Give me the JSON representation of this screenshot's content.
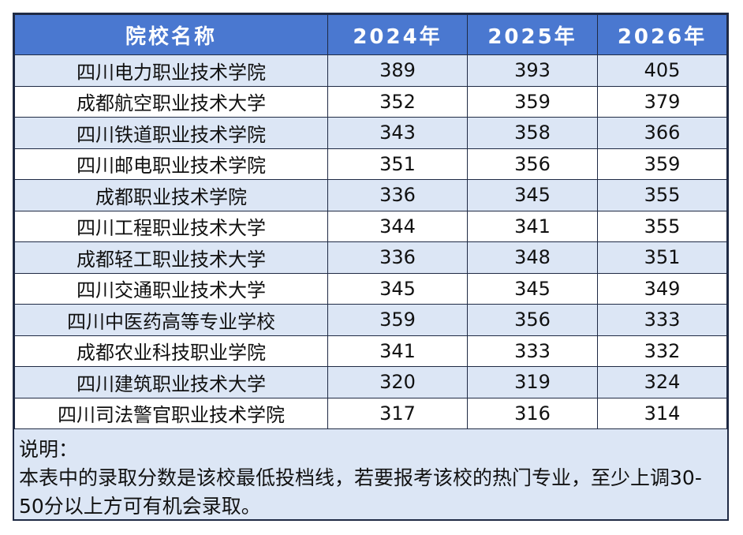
{
  "table": {
    "header": [
      "院校名称",
      "2024年",
      "2025年",
      "2026年"
    ],
    "rows": [
      [
        "四川电力职业技术学院",
        389,
        393,
        405
      ],
      [
        "成都航空职业技术大学",
        352,
        359,
        379
      ],
      [
        "四川铁道职业技术学院",
        343,
        358,
        366
      ],
      [
        "四川邮电职业技术学院",
        351,
        356,
        359
      ],
      [
        "成都职业技术学院",
        336,
        345,
        355
      ],
      [
        "四川工程职业技术大学",
        344,
        341,
        355
      ],
      [
        "成都轻工职业技术大学",
        336,
        348,
        351
      ],
      [
        "四川交通职业技术大学",
        345,
        345,
        349
      ],
      [
        "四川中医药高等专业学校",
        359,
        356,
        333
      ],
      [
        "成都农业科技职业学院",
        341,
        333,
        332
      ],
      [
        "四川建筑职业技术大学",
        320,
        319,
        324
      ],
      [
        "四川司法警官职业技术学院",
        317,
        316,
        314
      ]
    ]
  },
  "note": {
    "title": "说明：",
    "text": "本表中的录取分数是该校最低投档线，若要报考该校的热门专业，至少上调30-50分以上方可有机会录取。"
  }
}
